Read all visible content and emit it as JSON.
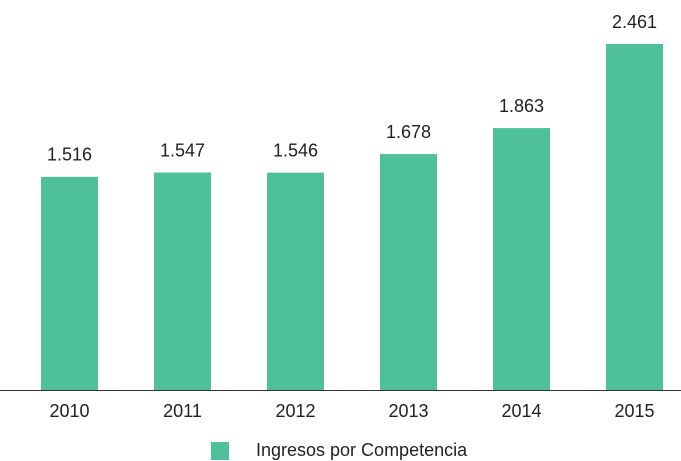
{
  "chart_data": {
    "type": "bar",
    "categories": [
      "2010",
      "2011",
      "2012",
      "2013",
      "2014",
      "2015"
    ],
    "series": [
      {
        "name": "Ingresos por Competencia",
        "color": "#4fc19a",
        "values": [
          1516,
          1547,
          1546,
          1678,
          1863,
          2461
        ],
        "value_labels": [
          "1.516",
          "1.547",
          "1.546",
          "1.678",
          "1.863",
          "2.461"
        ]
      }
    ],
    "legend": "bottom"
  }
}
